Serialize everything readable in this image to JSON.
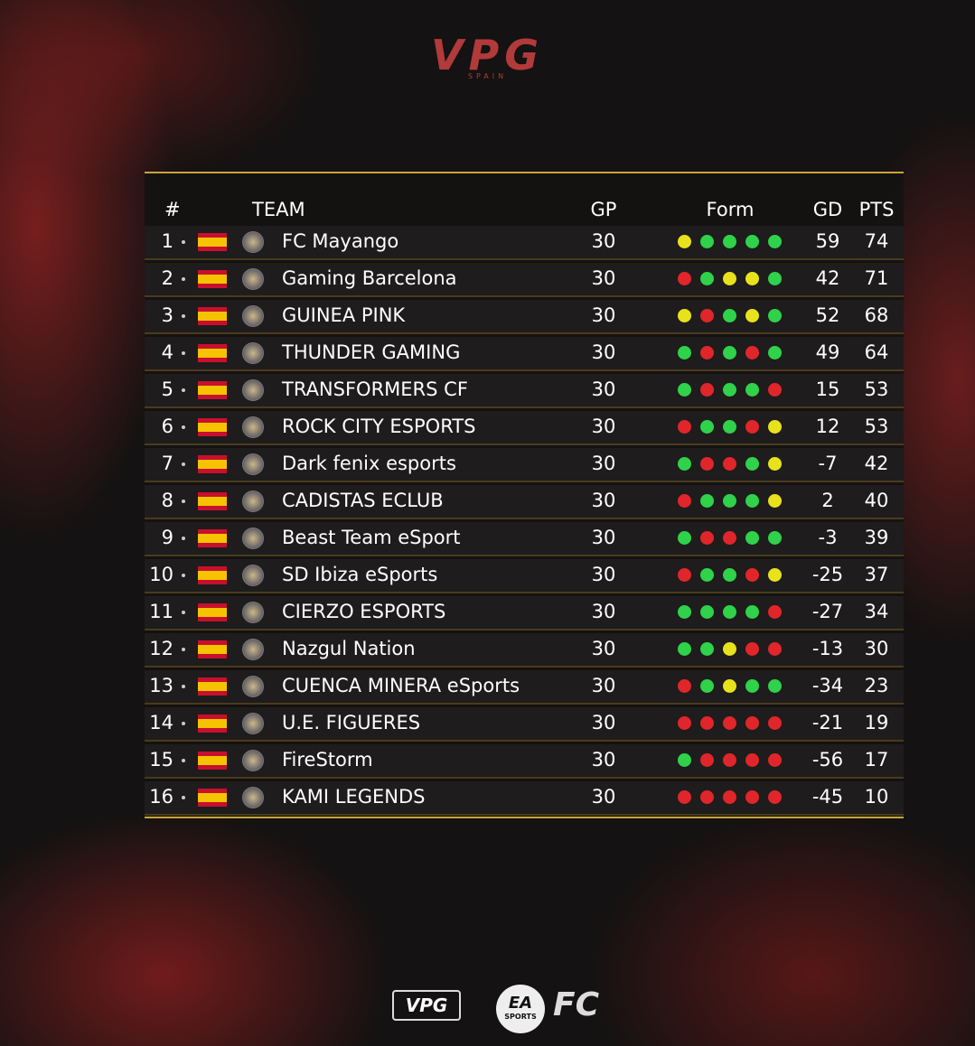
{
  "header": {
    "logo": "VPG",
    "sub": "SPAIN"
  },
  "table": {
    "columns": [
      "#",
      "TEAM",
      "GP",
      "Form",
      "GD",
      "PTS"
    ],
    "rows": [
      {
        "rank": 1,
        "team": "FC Mayango",
        "gp": 30,
        "form": [
          "#e8e21c",
          "#2fd24a",
          "#2fd24a",
          "#2fd24a",
          "#2fd24a"
        ],
        "gd": 59,
        "pts": 74
      },
      {
        "rank": 2,
        "team": "Gaming Barcelona",
        "gp": 30,
        "form": [
          "#e0262a",
          "#2fd24a",
          "#e8e21c",
          "#e8e21c",
          "#2fd24a"
        ],
        "gd": 42,
        "pts": 71
      },
      {
        "rank": 3,
        "team": "GUINEA PINK",
        "gp": 30,
        "form": [
          "#e8e21c",
          "#e0262a",
          "#2fd24a",
          "#e8e21c",
          "#2fd24a"
        ],
        "gd": 52,
        "pts": 68
      },
      {
        "rank": 4,
        "team": "THUNDER GAMING",
        "gp": 30,
        "form": [
          "#2fd24a",
          "#e0262a",
          "#2fd24a",
          "#e0262a",
          "#2fd24a"
        ],
        "gd": 49,
        "pts": 64
      },
      {
        "rank": 5,
        "team": "TRANSFORMERS CF",
        "gp": 30,
        "form": [
          "#2fd24a",
          "#e0262a",
          "#2fd24a",
          "#2fd24a",
          "#e0262a"
        ],
        "gd": 15,
        "pts": 53
      },
      {
        "rank": 6,
        "team": "ROCK CITY ESPORTS",
        "gp": 30,
        "form": [
          "#e0262a",
          "#2fd24a",
          "#2fd24a",
          "#e0262a",
          "#e8e21c"
        ],
        "gd": 12,
        "pts": 53
      },
      {
        "rank": 7,
        "team": "Dark fenix esports",
        "gp": 30,
        "form": [
          "#2fd24a",
          "#e0262a",
          "#e0262a",
          "#2fd24a",
          "#e8e21c"
        ],
        "gd": -7,
        "pts": 42
      },
      {
        "rank": 8,
        "team": "CADISTAS ECLUB",
        "gp": 30,
        "form": [
          "#e0262a",
          "#2fd24a",
          "#2fd24a",
          "#2fd24a",
          "#e8e21c"
        ],
        "gd": 2,
        "pts": 40
      },
      {
        "rank": 9,
        "team": "Beast Team eSport",
        "gp": 30,
        "form": [
          "#2fd24a",
          "#e0262a",
          "#e0262a",
          "#2fd24a",
          "#2fd24a"
        ],
        "gd": -3,
        "pts": 39
      },
      {
        "rank": 10,
        "team": "SD Ibiza eSports",
        "gp": 30,
        "form": [
          "#e0262a",
          "#2fd24a",
          "#2fd24a",
          "#e0262a",
          "#e8e21c"
        ],
        "gd": -25,
        "pts": 37
      },
      {
        "rank": 11,
        "team": "CIERZO ESPORTS",
        "gp": 30,
        "form": [
          "#2fd24a",
          "#2fd24a",
          "#2fd24a",
          "#2fd24a",
          "#e0262a"
        ],
        "gd": -27,
        "pts": 34
      },
      {
        "rank": 12,
        "team": "Nazgul Nation",
        "gp": 30,
        "form": [
          "#2fd24a",
          "#2fd24a",
          "#e8e21c",
          "#e0262a",
          "#e0262a"
        ],
        "gd": -13,
        "pts": 30
      },
      {
        "rank": 13,
        "team": "CUENCA MINERA eSports",
        "gp": 30,
        "form": [
          "#e0262a",
          "#2fd24a",
          "#e8e21c",
          "#2fd24a",
          "#2fd24a"
        ],
        "gd": -34,
        "pts": 23
      },
      {
        "rank": 14,
        "team": "U.E. FIGUERES",
        "gp": 30,
        "form": [
          "#e0262a",
          "#e0262a",
          "#e0262a",
          "#e0262a",
          "#e0262a"
        ],
        "gd": -21,
        "pts": 19
      },
      {
        "rank": 15,
        "team": "FireStorm",
        "gp": 30,
        "form": [
          "#2fd24a",
          "#e0262a",
          "#e0262a",
          "#e0262a",
          "#e0262a"
        ],
        "gd": -56,
        "pts": 17
      },
      {
        "rank": 16,
        "team": "KAMI LEGENDS",
        "gp": 30,
        "form": [
          "#e0262a",
          "#e0262a",
          "#e0262a",
          "#e0262a",
          "#e0262a"
        ],
        "gd": -45,
        "pts": 10
      }
    ]
  },
  "footer": {
    "logo": "VPG",
    "ea": "EA",
    "sports": "SPORTS",
    "fc": "FC"
  }
}
